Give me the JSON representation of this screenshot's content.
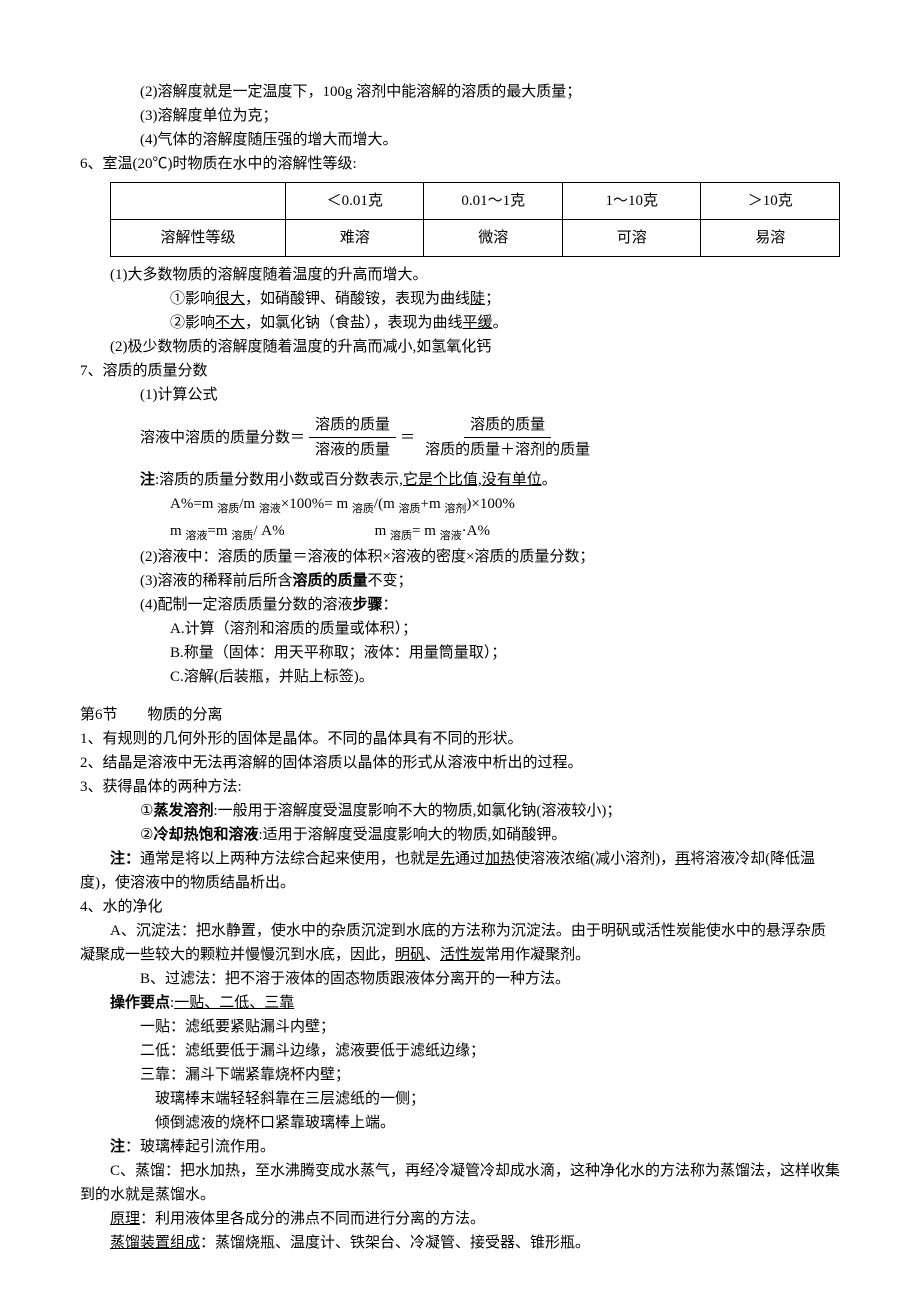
{
  "top": {
    "l1": "(2)溶解度就是一定温度下，100g 溶剂中能溶解的溶质的最大质量；",
    "l2": "(3)溶解度单位为克；",
    "l3": "(4)气体的溶解度随压强的增大而增大。"
  },
  "s6": {
    "title": "6、室温(20℃)时物质在水中的溶解性等级:",
    "table": {
      "columns": [
        "",
        "＜0.01克",
        "0.01～1克",
        "1～10克",
        "＞10克"
      ],
      "row_label": "溶解性等级",
      "row_vals": [
        "难溶",
        "微溶",
        "可溶",
        "易溶"
      ],
      "col_widths": [
        "24%",
        "19%",
        "19%",
        "19%",
        "19%"
      ]
    },
    "p1": "(1)大多数物质的溶解度随着温度的升高而增大。",
    "p1a_pre": "①影响",
    "p1a_u": "很大",
    "p1a_post": "，如硝酸钾、硝酸铵，表现为曲线",
    "p1a_u2": "陡",
    "p1a_end": "；",
    "p1b_pre": "②影响",
    "p1b_u": "不大",
    "p1b_post": "，如氯化钠（食盐），表现为曲线",
    "p1b_u2": "平缓",
    "p1b_end": "。",
    "p2": "(2)极少数物质的溶解度随着温度的升高而减小,如氢氧化钙"
  },
  "s7": {
    "title": "7、溶质的质量分数",
    "p1": "(1)计算公式",
    "formula_left": "溶液中溶质的质量分数",
    "frac1_num": "溶质的质量",
    "frac1_den": "溶液的质量",
    "frac2_num": "溶质的质量",
    "frac2_den": "溶质的质量＋溶剂的质量",
    "note_pre": "注",
    "note_body": ":溶质的质量分数用小数或百分数表示,",
    "note_u": "它是个比值,没有单位",
    "note_end": "。",
    "eq1_a": "A%=m ",
    "eq1_s1": "溶质",
    "eq1_b": "/m ",
    "eq1_s2": "溶液",
    "eq1_c": "×100%= m ",
    "eq1_s3": "溶质",
    "eq1_d": "/(m ",
    "eq1_s4": "溶质",
    "eq1_e": "+m ",
    "eq1_s5": "溶剂",
    "eq1_f": ")×100%",
    "eq2_a": "m ",
    "eq2_s1": "溶液",
    "eq2_b": "=m ",
    "eq2_s2": "溶质",
    "eq2_c": "/ A%",
    "eq2_gap": "　　　　　　",
    "eq2_d": "m ",
    "eq2_s3": "溶质",
    "eq2_e": "= m ",
    "eq2_s4": "溶液",
    "eq2_f": "·A%",
    "p2": "(2)溶液中：溶质的质量＝溶液的体积×溶液的密度×溶质的质量分数；",
    "p3_pre": "(3)溶液的稀释前后所含",
    "p3_b": "溶质的质量",
    "p3_post": "不变；",
    "p4_pre": "(4)配制一定溶质质量分数的溶液",
    "p4_b": "步骤",
    "p4_post": "：",
    "p4a": "A.计算（溶剂和溶质的质量或体积）；",
    "p4b": "B.称量（固体：用天平称取；液体：用量筒量取）；",
    "p4c": "C.溶解(后装瓶，并贴上标签)。"
  },
  "s6b": {
    "title": "第6节　　物质的分离",
    "l1": "1、有规则的几何外形的固体是晶体。不同的晶体具有不同的形状。",
    "l2": "2、结晶是溶液中无法再溶解的固体溶质以晶体的形式从溶液中析出的过程。",
    "l3": "3、获得晶体的两种方法:",
    "l3a_pre": "①",
    "l3a_b": "蒸发溶剂",
    "l3a_post": ":一般用于溶解度受温度影响不大的物质,如氯化钠(溶液较小)；",
    "l3b_pre": "②",
    "l3b_b": "冷却热饱和溶液",
    "l3b_post": ":适用于溶解度受温度影响大的物质,如硝酸钾。",
    "note_pre": "注：",
    "note_a": "通常是将以上两种方法综合起来使用，也就是",
    "note_u1": "先",
    "note_b": "通过",
    "note_u2": "加热",
    "note_c": "使溶液浓缩(减小溶剂)，",
    "note_u3": "再",
    "note_d": "将溶液冷却(降低温度)，使溶液中的物质结晶析出。"
  },
  "s4": {
    "title": "4、水的净化",
    "pA_pre": "A、沉淀法：把水静置，使水中的杂质沉淀到水底的方法称为沉淀法。由于明矾或活性炭能使水中的悬浮杂质凝聚成一些较大的颗粒并慢慢沉到水底，因此，",
    "pA_u1": "明矾",
    "pA_mid": "、",
    "pA_u2": "活性炭",
    "pA_post": "常用作凝聚剂。",
    "pB": "B、过滤法：把不溶于液体的固态物质跟液体分离开的一种方法。",
    "opkey_b": "操作要点",
    "opkey_post": ":",
    "opkey_u": "一贴、二低、三靠",
    "y1": "一贴：滤纸要紧贴漏斗内壁；",
    "e1": "二低：滤纸要低于漏斗边缘，滤液要低于滤纸边缘；",
    "s1": "三靠：漏斗下端紧靠烧杯内壁；",
    "s2": "玻璃棒末端轻轻斜靠在三层滤纸的一侧；",
    "s3": "倾倒滤液的烧杯口紧靠玻璃棒上端。",
    "note_b": "注",
    "note_txt": "：玻璃棒起引流作用。",
    "pC": "C、蒸馏：把水加热，至水沸腾变成水蒸气，再经冷凝管冷却成水滴，这种净化水的方法称为蒸馏法，这样收集到的水就是蒸馏水。",
    "pr_u": "原理",
    "pr_txt": "：利用液体里各成分的沸点不同而进行分离的方法。",
    "dev_u": "蒸馏装置组成",
    "dev_txt": "：蒸馏烧瓶、温度计、铁架台、冷凝管、接受器、锥形瓶。"
  }
}
